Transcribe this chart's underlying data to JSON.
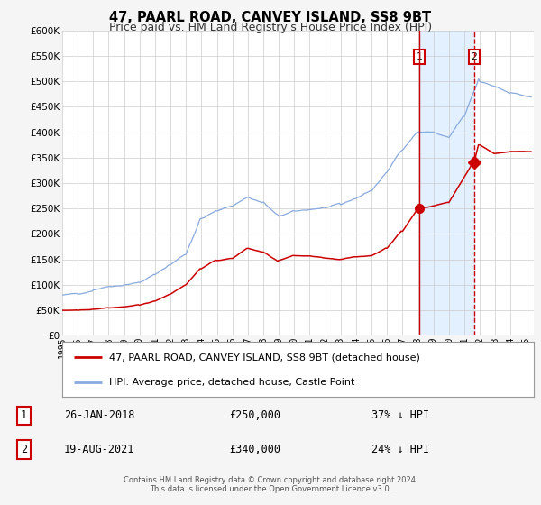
{
  "title": "47, PAARL ROAD, CANVEY ISLAND, SS8 9BT",
  "subtitle": "Price paid vs. HM Land Registry's House Price Index (HPI)",
  "ylim": [
    0,
    600000
  ],
  "yticks": [
    0,
    50000,
    100000,
    150000,
    200000,
    250000,
    300000,
    350000,
    400000,
    450000,
    500000,
    550000,
    600000
  ],
  "xlim_start": 1995.0,
  "xlim_end": 2025.5,
  "background_color": "#f5f5f5",
  "plot_bg_color": "#ffffff",
  "grid_color": "#cccccc",
  "red_line_color": "#cc0000",
  "blue_line_color": "#88aadd",
  "vline1_x": 2018.07,
  "vline2_x": 2021.63,
  "marker1_x": 2018.07,
  "marker1_y": 250000,
  "marker2_x": 2021.63,
  "marker2_y": 340000,
  "label1": "1",
  "label2": "2",
  "annotation1_date": "26-JAN-2018",
  "annotation1_price": "£250,000",
  "annotation1_hpi": "37% ↓ HPI",
  "annotation2_date": "19-AUG-2021",
  "annotation2_price": "£340,000",
  "annotation2_hpi": "24% ↓ HPI",
  "legend_label_red": "47, PAARL ROAD, CANVEY ISLAND, SS8 9BT (detached house)",
  "legend_label_blue": "HPI: Average price, detached house, Castle Point",
  "footer_text": "Contains HM Land Registry data © Crown copyright and database right 2024.\nThis data is licensed under the Open Government Licence v3.0."
}
